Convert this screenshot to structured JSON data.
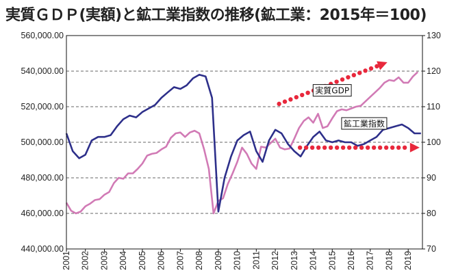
{
  "chart_data": {
    "type": "line",
    "title": "実質ＧＤＰ(実額)と鉱工業指数の推移(鉱工業：2015年＝100)",
    "xlabel": "",
    "ylabel": "",
    "x_tick_labels": [
      "2001",
      "2002",
      "2003",
      "2004",
      "2005",
      "2006",
      "2007",
      "2008",
      "2009",
      "2010",
      "2011",
      "2012",
      "2013",
      "2014",
      "2015",
      "2016",
      "2017",
      "2018",
      "2019"
    ],
    "y_left": {
      "min": 440000,
      "max": 560000,
      "step": 20000,
      "tick_labels": [
        "440,000.00",
        "460,000.00",
        "480,000.00",
        "500,000.00",
        "520,000.00",
        "540,000.00",
        "560,000.00"
      ]
    },
    "y_right": {
      "min": 70,
      "max": 130,
      "step": 10,
      "tick_labels": [
        "70",
        "80",
        "90",
        "100",
        "110",
        "120",
        "130"
      ]
    },
    "grid": {
      "horizontal": true,
      "style": "dashed"
    },
    "series": [
      {
        "name": "実質GDP",
        "axis": "left",
        "color": "#d17ab5",
        "x": [
          2001.0,
          2001.25,
          2001.5,
          2001.75,
          2002.0,
          2002.25,
          2002.5,
          2002.75,
          2003.0,
          2003.25,
          2003.5,
          2003.75,
          2004.0,
          2004.25,
          2004.5,
          2004.75,
          2005.0,
          2005.25,
          2005.5,
          2005.75,
          2006.0,
          2006.25,
          2006.5,
          2006.75,
          2007.0,
          2007.25,
          2007.5,
          2007.75,
          2008.0,
          2008.25,
          2008.5,
          2008.75,
          2009.0,
          2009.25,
          2009.5,
          2009.75,
          2010.0,
          2010.25,
          2010.5,
          2010.75,
          2011.0,
          2011.25,
          2011.5,
          2011.75,
          2012.0,
          2012.25,
          2012.5,
          2012.75,
          2013.0,
          2013.25,
          2013.5,
          2013.75,
          2014.0,
          2014.25,
          2014.5,
          2014.75,
          2015.0,
          2015.25,
          2015.5,
          2015.75,
          2016.0,
          2016.25,
          2016.5,
          2016.75,
          2017.0,
          2017.25,
          2017.5,
          2017.75,
          2018.0,
          2018.25,
          2018.5,
          2018.75,
          2019.0,
          2019.25,
          2019.5
        ],
        "values": [
          466000,
          461500,
          460000,
          461000,
          464000,
          465500,
          467500,
          468000,
          470500,
          472000,
          477000,
          480000,
          479500,
          482500,
          482500,
          485000,
          488000,
          492500,
          493500,
          494000,
          496000,
          497500,
          502500,
          505000,
          505500,
          503000,
          505500,
          506500,
          505000,
          496000,
          485000,
          460000,
          467000,
          468500,
          476500,
          482500,
          489000,
          497000,
          493500,
          488000,
          485000,
          497500,
          497000,
          499500,
          502000,
          497000,
          496000,
          496500,
          502000,
          508000,
          512000,
          514000,
          511000,
          516000,
          508000,
          509000,
          513500,
          517500,
          518500,
          518000,
          519000,
          520000,
          520500,
          523000,
          525500,
          528000,
          530500,
          533500,
          535000,
          534500,
          536500,
          533500,
          533500,
          537000,
          539500
        ]
      },
      {
        "name": "鉱工業指数",
        "axis": "right",
        "color": "#2d2f8a",
        "x": [
          2001.0,
          2001.33,
          2001.67,
          2002.0,
          2002.33,
          2002.67,
          2003.0,
          2003.33,
          2003.67,
          2004.0,
          2004.33,
          2004.67,
          2005.0,
          2005.33,
          2005.67,
          2006.0,
          2006.33,
          2006.67,
          2007.0,
          2007.33,
          2007.67,
          2008.0,
          2008.33,
          2008.67,
          2009.0,
          2009.33,
          2009.67,
          2010.0,
          2010.33,
          2010.67,
          2011.0,
          2011.33,
          2011.67,
          2012.0,
          2012.33,
          2012.67,
          2013.0,
          2013.33,
          2013.67,
          2014.0,
          2014.33,
          2014.67,
          2015.0,
          2015.33,
          2015.67,
          2016.0,
          2016.33,
          2016.67,
          2017.0,
          2017.33,
          2017.67,
          2018.0,
          2018.33,
          2018.67,
          2019.0,
          2019.33,
          2019.67
        ],
        "values": [
          102.5,
          97.5,
          95.5,
          96.5,
          100.5,
          101.5,
          101.5,
          102.0,
          104.5,
          106.5,
          107.5,
          107.0,
          108.5,
          109.5,
          110.5,
          112.5,
          114.0,
          115.5,
          115.0,
          116.0,
          118.0,
          119.0,
          118.5,
          112.5,
          80.5,
          90.0,
          96.0,
          100.5,
          102.0,
          103.0,
          97.5,
          94.5,
          100.5,
          103.5,
          102.5,
          99.5,
          97.5,
          96.0,
          99.0,
          101.5,
          103.0,
          100.5,
          100.0,
          100.5,
          100.0,
          100.0,
          99.0,
          99.5,
          100.5,
          101.5,
          103.5,
          104.0,
          104.5,
          105.0,
          104.0,
          102.5,
          102.5
        ]
      }
    ],
    "annotations": [
      {
        "text": "実質GDP",
        "x": 2014.1,
        "y_right": 114.5
      },
      {
        "text": "鉱工業指数",
        "x": 2015.6,
        "y_right": 105.2
      }
    ],
    "arrows": [
      {
        "style": "dotted",
        "color": "#e8283c",
        "from": {
          "x": 2012.2,
          "y_right": 110.8
        },
        "to": {
          "x": 2017.9,
          "y_right": 122.5
        }
      },
      {
        "style": "dotted",
        "color": "#e8283c",
        "from": {
          "x": 2013.3,
          "y_right": 98.5
        },
        "to": {
          "x": 2019.6,
          "y_right": 98.5
        }
      }
    ]
  }
}
